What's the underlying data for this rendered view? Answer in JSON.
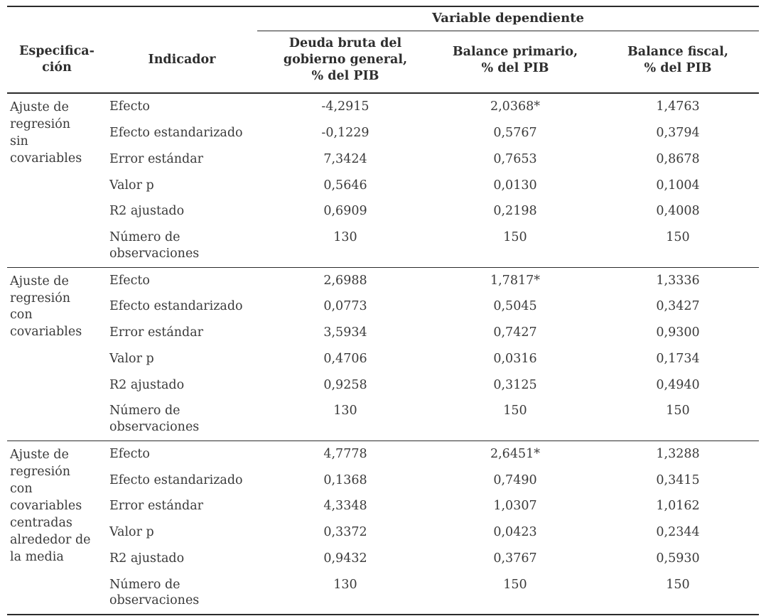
{
  "header": {
    "dependent_variable_label": "Variable dependiente",
    "specification_label": "Especifica-\nción",
    "indicator_label": "Indicador",
    "value_columns": [
      "Deuda bruta del\ngobierno general,\n% del PIB",
      "Balance primario,\n% del PIB",
      "Balance fiscal,\n% del PIB"
    ]
  },
  "groups": [
    {
      "specification": "Ajuste de\nregresión\nsin\ncovariables",
      "rows": [
        {
          "indicator": "Efecto",
          "values": [
            "-4,2915",
            "2,0368*",
            "1,4763"
          ]
        },
        {
          "indicator": "Efecto estandarizado",
          "values": [
            "-0,1229",
            "0,5767",
            "0,3794"
          ]
        },
        {
          "indicator": "Error estándar",
          "values": [
            "7,3424",
            "0,7653",
            "0,8678"
          ]
        },
        {
          "indicator": "Valor p",
          "values": [
            "0,5646",
            "0,0130",
            "0,1004"
          ]
        },
        {
          "indicator": "R2 ajustado",
          "values": [
            "0,6909",
            "0,2198",
            "0,4008"
          ]
        },
        {
          "indicator": "Número de\nobservaciones",
          "values": [
            "130",
            "150",
            "150"
          ]
        }
      ]
    },
    {
      "specification": "Ajuste de\nregresión\ncon\ncovariables",
      "rows": [
        {
          "indicator": "Efecto",
          "values": [
            "2,6988",
            "1,7817*",
            "1,3336"
          ]
        },
        {
          "indicator": "Efecto estandarizado",
          "values": [
            "0,0773",
            "0,5045",
            "0,3427"
          ]
        },
        {
          "indicator": "Error estándar",
          "values": [
            "3,5934",
            "0,7427",
            "0,9300"
          ]
        },
        {
          "indicator": "Valor p",
          "values": [
            "0,4706",
            "0,0316",
            "0,1734"
          ]
        },
        {
          "indicator": "R2 ajustado",
          "values": [
            "0,9258",
            "0,3125",
            "0,4940"
          ]
        },
        {
          "indicator": "Número de\nobservaciones",
          "values": [
            "130",
            "150",
            "150"
          ]
        }
      ]
    },
    {
      "specification": "Ajuste de\nregresión\ncon\ncovariables\ncentradas\nalrededor de\nla media",
      "rows": [
        {
          "indicator": "Efecto",
          "values": [
            "4,7778",
            "2,6451*",
            "1,3288"
          ]
        },
        {
          "indicator": "Efecto estandarizado",
          "values": [
            "0,1368",
            "0,7490",
            "0,3415"
          ]
        },
        {
          "indicator": "Error estándar",
          "values": [
            "4,3348",
            "1,0307",
            "1,0162"
          ]
        },
        {
          "indicator": "Valor p",
          "values": [
            "0,3372",
            "0,0423",
            "0,2344"
          ]
        },
        {
          "indicator": "R2 ajustado",
          "values": [
            "0,9432",
            "0,3767",
            "0,5930"
          ]
        },
        {
          "indicator": "Número de\nobservaciones",
          "values": [
            "130",
            "150",
            "150"
          ]
        }
      ]
    }
  ]
}
